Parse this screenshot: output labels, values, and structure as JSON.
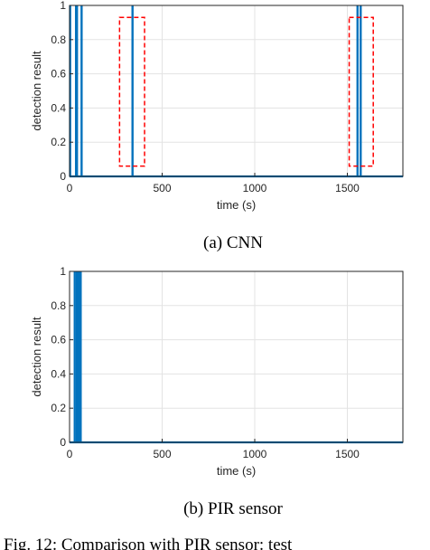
{
  "caption_text": "Fig. 12: Comparison with PIR sensor: test",
  "chart_data": [
    {
      "type": "line",
      "caption": "(a) CNN",
      "xlabel": "time (s)",
      "ylabel": "detection result",
      "xlim": [
        0,
        1800
      ],
      "ylim": [
        0,
        1
      ],
      "x_ticks": [
        0,
        500,
        1000,
        1500
      ],
      "y_ticks": [
        0,
        0.2,
        0.4,
        0.6,
        0.8,
        1
      ],
      "x_tick_labels": [
        "0",
        "500",
        "1000",
        "1500"
      ],
      "y_tick_labels": [
        "0",
        "0.2",
        "0.4",
        "0.6",
        "0.8",
        "1"
      ],
      "grid": true,
      "series": [
        {
          "color": "#0072bd",
          "detections_x": [
            3,
            35,
            40,
            65,
            340,
            1555,
            1572
          ]
        }
      ],
      "highlight_boxes": [
        {
          "x_range": [
            270,
            405
          ],
          "y_range": [
            0.06,
            0.93
          ],
          "color": "#ff0000"
        },
        {
          "x_range": [
            1510,
            1640
          ],
          "y_range": [
            0.06,
            0.93
          ],
          "color": "#ff0000"
        }
      ]
    },
    {
      "type": "line",
      "caption": "(b) PIR sensor",
      "xlabel": "time (s)",
      "ylabel": "detection result",
      "xlim": [
        0,
        1800
      ],
      "ylim": [
        0,
        1
      ],
      "x_ticks": [
        0,
        500,
        1000,
        1500
      ],
      "y_ticks": [
        0,
        0.2,
        0.4,
        0.6,
        0.8,
        1
      ],
      "x_tick_labels": [
        "0",
        "500",
        "1000",
        "1500"
      ],
      "y_tick_labels": [
        "0",
        "0.2",
        "0.4",
        "0.6",
        "0.8",
        "1"
      ],
      "grid": true,
      "series": [
        {
          "color": "#0072bd",
          "detections_x": [
            28,
            40,
            50,
            60
          ]
        }
      ],
      "highlight_boxes": []
    }
  ]
}
